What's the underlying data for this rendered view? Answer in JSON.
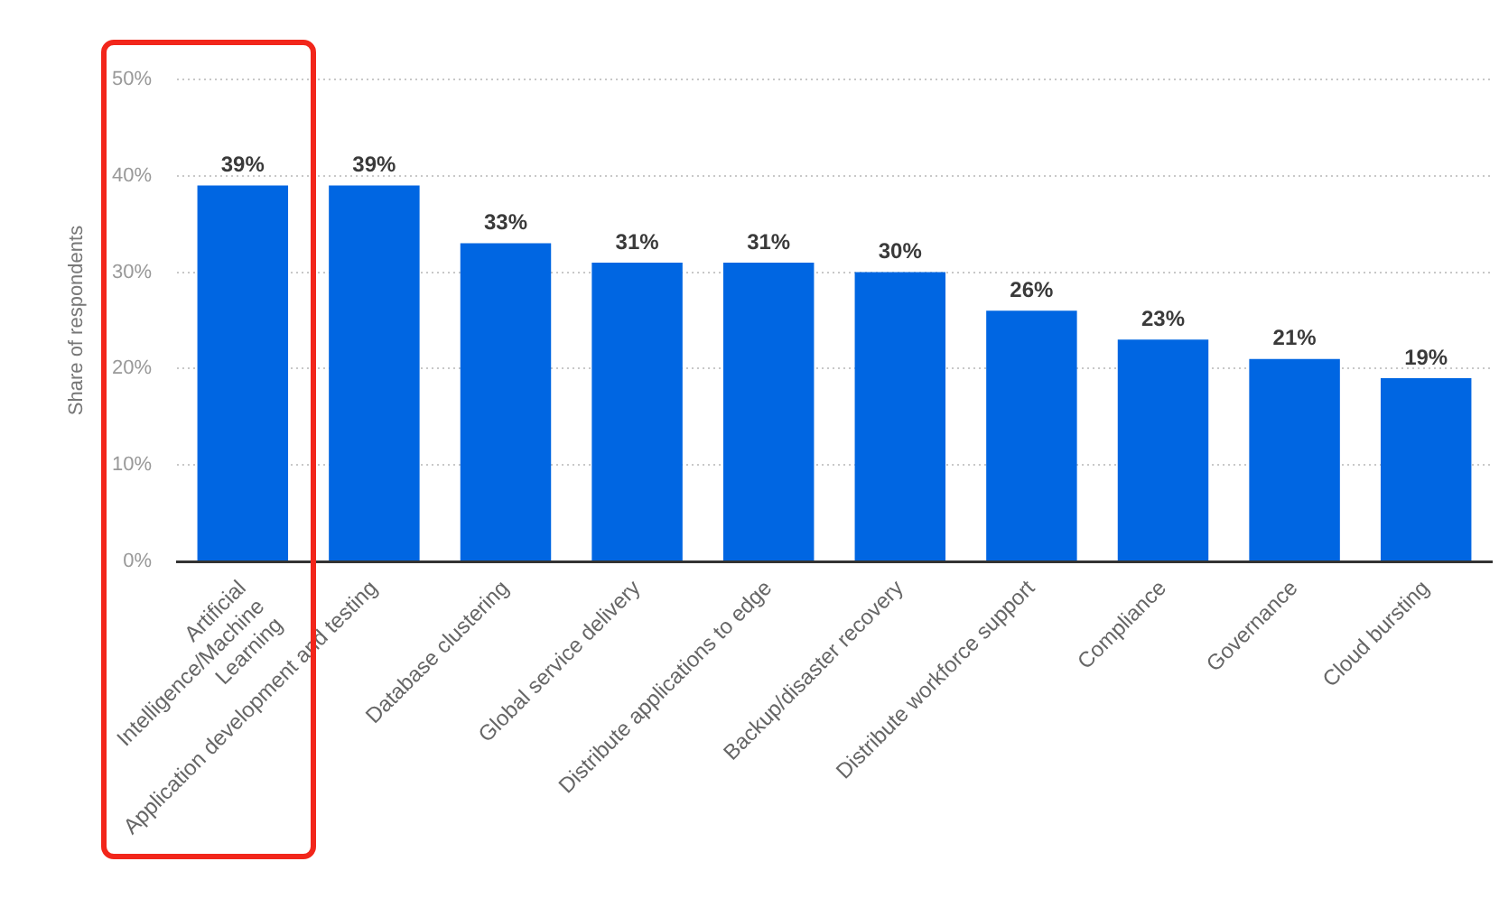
{
  "chart_data": {
    "type": "bar",
    "ylabel": "Share of respondents",
    "categories": [
      "Artificial Intelligence/Machine Learning",
      "Application development and testing",
      "Database clustering",
      "Global service delivery",
      "Distribute applications to edge",
      "Backup/disaster recovery",
      "Distribute workforce support",
      "Compliance",
      "Governance",
      "Cloud bursting"
    ],
    "values": [
      39,
      39,
      33,
      31,
      31,
      30,
      26,
      23,
      21,
      19
    ],
    "value_labels": [
      "39%",
      "39%",
      "33%",
      "31%",
      "31%",
      "30%",
      "26%",
      "23%",
      "21%",
      "19%"
    ],
    "color": "#0066e2",
    "ylim": [
      0,
      50
    ],
    "yticks": [
      {
        "value": 0,
        "label": "0%"
      },
      {
        "value": 10,
        "label": "10%"
      },
      {
        "value": 20,
        "label": "20%"
      },
      {
        "value": 30,
        "label": "30%"
      },
      {
        "value": 40,
        "label": "40%"
      },
      {
        "value": 50,
        "label": "50%"
      }
    ],
    "grid": "y",
    "legend": false
  }
}
